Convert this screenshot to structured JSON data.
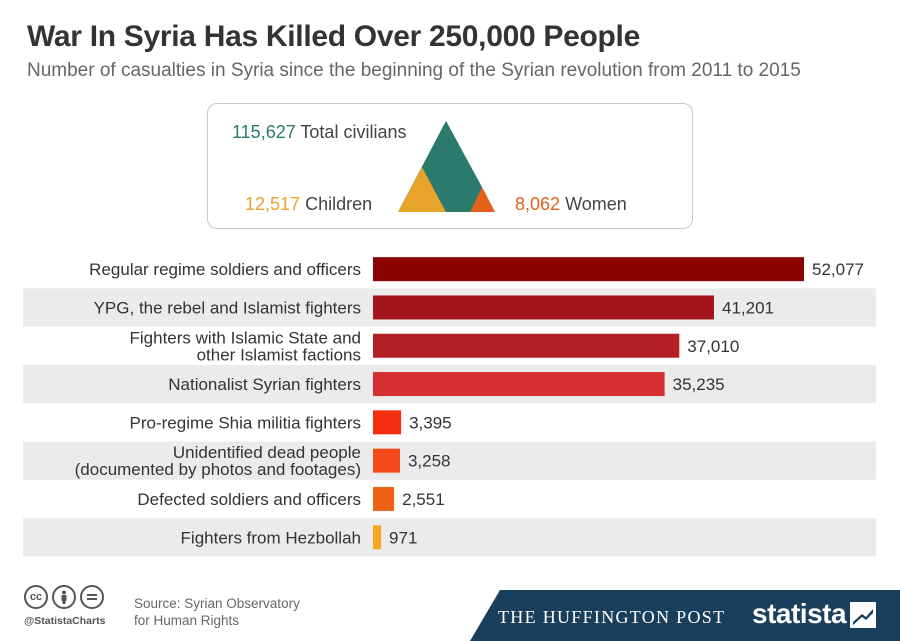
{
  "header": {
    "title": "War In Syria Has Killed Over 250,000 People",
    "subtitle": "Number of casualties in Syria since the beginning of the Syrian revolution from 2011 to 2015"
  },
  "summary": {
    "civilians": {
      "value": "115,627",
      "label": "Total civilians",
      "color": "#2b7a6e"
    },
    "children": {
      "value": "12,517",
      "label": "Children",
      "color": "#e8a32a"
    },
    "women": {
      "value": "8,062",
      "label": "Women",
      "color": "#e2621b"
    }
  },
  "chart_data": {
    "type": "bar",
    "orientation": "horizontal",
    "title": "War In Syria Has Killed Over 250,000 People",
    "subtitle": "Number of casualties in Syria since the beginning of the Syrian revolution from 2011 to 2015",
    "categories": [
      "Regular regime soldiers and officers",
      "YPG, the rebel and Islamist fighters",
      "Fighters with Islamic State and\nother Islamist factions",
      "Nationalist Syrian fighters",
      "Pro-regime Shia militia fighters",
      "Unidentified dead people\n(documented by photos and footages)",
      "Defected soldiers and officers",
      "Fighters from Hezbollah"
    ],
    "values": [
      52077,
      41201,
      37010,
      35235,
      3395,
      3258,
      2551,
      971
    ],
    "value_labels": [
      "52,077",
      "41,201",
      "37,010",
      "35,235",
      "3,395",
      "3,258",
      "2,551",
      "971"
    ],
    "colors": [
      "#8b0000",
      "#a3161e",
      "#b41f26",
      "#d62f31",
      "#f52d10",
      "#f4491a",
      "#ef6213",
      "#f6a823"
    ],
    "xlim": [
      0,
      52077
    ],
    "grid": false,
    "legend": "none",
    "row_stripes": true
  },
  "footer": {
    "handle": "@StatistaCharts",
    "source_line1": "Source: Syrian Observatory",
    "source_line2": "for Human Rights",
    "publisher": "The Huffington Post",
    "brand": "statista",
    "cc_icons": [
      "creative-commons-icon",
      "attribution-icon",
      "no-derivatives-icon"
    ],
    "banner_color": "#1a3f5c"
  }
}
